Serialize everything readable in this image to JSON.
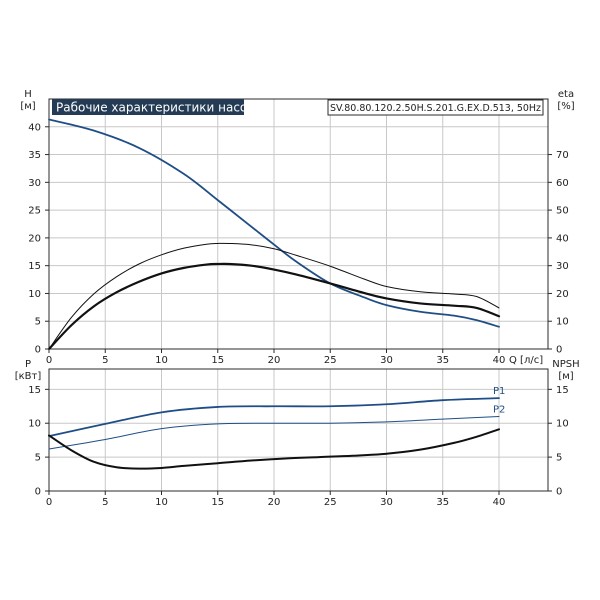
{
  "title": "Рабочие характеристики насоса",
  "model": "SV.80.80.120.2.50H.S.201.G.EX.D.513, 50Hz",
  "colors": {
    "blue": "#1f4e86",
    "black": "#111111",
    "title_bg": "#243b55",
    "grid": "#c8c8c8"
  },
  "chart_data": [
    {
      "type": "line",
      "panel": "head-efficiency",
      "xlabel": "Q [л/с]",
      "ylabel_left": "H\n[м]",
      "ylabel_right": "eta\n[%]",
      "x_ticks": [
        0,
        5,
        10,
        15,
        20,
        25,
        30,
        35,
        40
      ],
      "y_left_ticks": [
        0,
        5,
        10,
        15,
        20,
        25,
        30,
        35,
        40
      ],
      "y_right_ticks": [
        0,
        10,
        20,
        30,
        40,
        50,
        60,
        70
      ],
      "xlim": [
        0,
        40
      ],
      "ylim_left": [
        0,
        45
      ],
      "ylim_right": [
        0,
        90
      ],
      "grid": true,
      "series": [
        {
          "name": "",
          "axis": "left",
          "color": "blue",
          "width": 1.8,
          "x": [
            0,
            4,
            8,
            12,
            15,
            18,
            20,
            22,
            25,
            28,
            30,
            33,
            36,
            38,
            40
          ],
          "y": [
            41.3,
            39.3,
            36.2,
            31.5,
            26.8,
            22.0,
            18.8,
            15.7,
            11.8,
            9.3,
            7.9,
            6.7,
            6.0,
            5.2,
            4.0
          ]
        },
        {
          "name": "",
          "axis": "left",
          "color": "black",
          "width": 2.2,
          "x": [
            0,
            2,
            4,
            6,
            8,
            10,
            12,
            14,
            15,
            16,
            18,
            20,
            22,
            25,
            28,
            30,
            33,
            36,
            38,
            40
          ],
          "y": [
            0,
            4.3,
            7.7,
            10.2,
            12.1,
            13.6,
            14.6,
            15.2,
            15.3,
            15.3,
            15.0,
            14.3,
            13.4,
            11.8,
            10.1,
            9.1,
            8.2,
            7.8,
            7.4,
            5.9
          ]
        },
        {
          "name": "",
          "axis": "right",
          "color": "black",
          "width": 1.0,
          "x": [
            0,
            2,
            4,
            6,
            8,
            10,
            12,
            14,
            15,
            16,
            18,
            20,
            22,
            25,
            28,
            30,
            33,
            36,
            38,
            40
          ],
          "y": [
            0,
            11.4,
            19.9,
            26.0,
            30.6,
            33.9,
            36.3,
            37.7,
            38.0,
            38.0,
            37.5,
            36.1,
            33.7,
            29.8,
            25.2,
            22.5,
            20.6,
            19.8,
            18.9,
            14.8
          ]
        }
      ]
    },
    {
      "type": "line",
      "panel": "power-npsh",
      "ylabel_left": "P\n[кВт]",
      "ylabel_right": "NPSH\n[м]",
      "x_ticks": [
        0,
        5,
        10,
        15,
        20,
        25,
        30,
        35,
        40
      ],
      "y_left_ticks": [
        0,
        5,
        10,
        15
      ],
      "y_right_ticks": [
        0,
        5,
        10,
        15
      ],
      "xlim": [
        0,
        40
      ],
      "ylim_left": [
        0,
        18
      ],
      "ylim_right": [
        0,
        18
      ],
      "grid": true,
      "series": [
        {
          "name": "P1",
          "axis": "left",
          "color": "blue",
          "width": 1.8,
          "x": [
            0,
            5,
            10,
            15,
            20,
            25,
            30,
            35,
            40
          ],
          "y": [
            8.1,
            9.9,
            11.6,
            12.4,
            12.5,
            12.5,
            12.8,
            13.4,
            13.7
          ]
        },
        {
          "name": "P2",
          "axis": "left",
          "color": "blue",
          "width": 1.0,
          "x": [
            0,
            5,
            10,
            15,
            20,
            25,
            30,
            35,
            40
          ],
          "y": [
            6.2,
            7.6,
            9.2,
            9.9,
            10.0,
            10.0,
            10.2,
            10.6,
            11.0
          ]
        },
        {
          "name": "",
          "axis": "right",
          "color": "black",
          "width": 2.0,
          "x": [
            0,
            2,
            4,
            6,
            8,
            10,
            12,
            15,
            18,
            21,
            24,
            27,
            30,
            33,
            36,
            38,
            40
          ],
          "y": [
            8.2,
            6.0,
            4.3,
            3.5,
            3.3,
            3.4,
            3.7,
            4.1,
            4.5,
            4.8,
            5.0,
            5.2,
            5.5,
            6.1,
            7.1,
            8.0,
            9.1
          ]
        }
      ]
    }
  ]
}
